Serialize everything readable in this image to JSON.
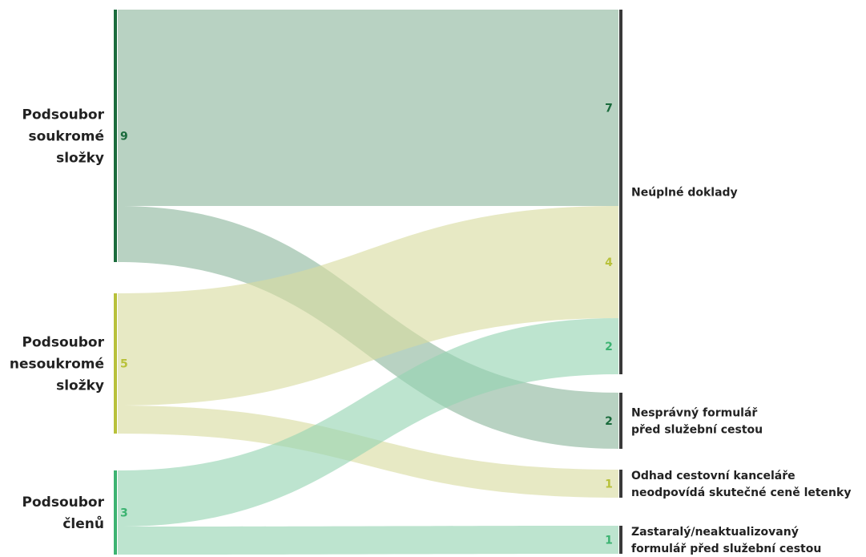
{
  "chart_data": {
    "type": "sankey",
    "sources": [
      {
        "id": "s1",
        "label_lines": [
          "Podsoubor",
          "soukromé",
          "složky"
        ],
        "value": 9,
        "value_label": "9",
        "color": "#1a6b3c",
        "flow_color": "#8db79d"
      },
      {
        "id": "s2",
        "label_lines": [
          "Podsoubor",
          "nesoukromé",
          "složky"
        ],
        "value": 5,
        "value_label": "5",
        "color": "#b8c13a",
        "flow_color": "#d9dca0"
      },
      {
        "id": "s3",
        "label_lines": [
          "Podsoubor",
          "členů"
        ],
        "value": 3,
        "value_label": "3",
        "color": "#3cb371",
        "flow_color": "#94d4b2"
      }
    ],
    "targets": [
      {
        "id": "t1",
        "label_lines": [
          "Neúplné doklady"
        ],
        "value": 13
      },
      {
        "id": "t2",
        "label_lines": [
          "Nesprávný formulář",
          "před služební cestou"
        ],
        "value": 2
      },
      {
        "id": "t3",
        "label_lines": [
          "Odhad cestovní kanceláře",
          "neodpovídá skutečné ceně letenky"
        ],
        "value": 1
      },
      {
        "id": "t4",
        "label_lines": [
          "Zastaralý/neaktualizovaný",
          "formulář před služební cestou"
        ],
        "value": 1
      }
    ],
    "flows": [
      {
        "from": "s1",
        "to": "t1",
        "value": 7,
        "value_label": "7"
      },
      {
        "from": "s1",
        "to": "t2",
        "value": 2,
        "value_label": "2"
      },
      {
        "from": "s2",
        "to": "t1",
        "value": 4,
        "value_label": "4"
      },
      {
        "from": "s2",
        "to": "t3",
        "value": 1,
        "value_label": "1"
      },
      {
        "from": "s3",
        "to": "t1",
        "value": 2,
        "value_label": "2"
      },
      {
        "from": "s3",
        "to": "t4",
        "value": 1,
        "value_label": "1"
      }
    ],
    "target_bar_color": "#3a3a3a"
  }
}
